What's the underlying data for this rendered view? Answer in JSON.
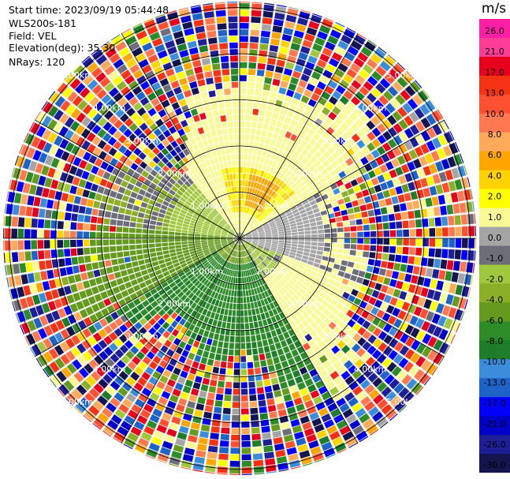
{
  "header": {
    "start_time": "Start time: 2023/09/19 05:44:48",
    "instrument": "WLS200s-181",
    "field": "Field: VEL",
    "elevation": "Elevation(deg): 35.30",
    "nrays": "NRays: 120"
  },
  "colorbar": {
    "unit": "m/s",
    "ticks": [
      "26.0",
      "21.0",
      "17.0",
      "13.0",
      "10.0",
      "8.0",
      "6.0",
      "4.0",
      "2.0",
      "1.0",
      "0.0",
      "-1.0",
      "-2.0",
      "-4.0",
      "-6.0",
      "-8.0",
      "-10.0",
      "-13.0",
      "-17.0",
      "-21.0",
      "-26.0",
      "-30.0"
    ],
    "colors": [
      "#ff1ea5",
      "#ff3c96",
      "#e6001e",
      "#f53214",
      "#ff5032",
      "#ff7850",
      "#ffaa5a",
      "#ffa500",
      "#ffd200",
      "#ffff00",
      "#fafa96",
      "#a5a5a5",
      "#6e6e78",
      "#a0c83c",
      "#8caf28",
      "#649b1e",
      "#2d8c28",
      "#1e7d28",
      "#3c8cdc",
      "#1e64c8",
      "#0000ff",
      "#0000c8",
      "#1e1e96",
      "#141450"
    ]
  },
  "chart_data": {
    "type": "heatmap",
    "projection": "polar PPI",
    "field": "VEL",
    "units": "m/s",
    "elevation_deg": 35.3,
    "n_rays": 120,
    "range_rings_km": [
      1.0,
      2.0,
      3.0,
      4.0,
      5.0
    ],
    "range_ring_labels": [
      "1.00km",
      "2.00km",
      "3.00km",
      "4.00km",
      "5.00km"
    ],
    "spokes_deg": [
      0,
      30,
      60,
      90,
      120,
      150,
      180,
      210,
      240,
      270,
      300,
      330
    ],
    "clim": [
      -30,
      26
    ],
    "near_range_pattern": [
      {
        "sector": "north / north-east",
        "values_m_s": [
          2,
          8
        ]
      },
      {
        "sector": "east",
        "values_m_s": [
          0,
          2
        ]
      },
      {
        "sector": "south / south-east",
        "values_m_s": [
          -6,
          -1
        ]
      },
      {
        "sector": "west",
        "values_m_s": [
          -2,
          0
        ]
      }
    ],
    "far_range": "noise (random velocities across the full colour scale)"
  }
}
